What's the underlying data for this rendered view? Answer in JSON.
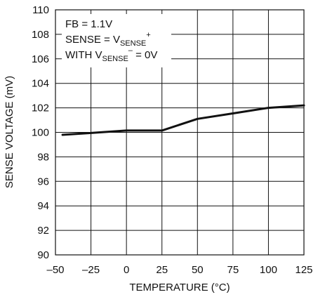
{
  "chart_data": {
    "type": "line",
    "xlabel": "TEMPERATURE (°C)",
    "ylabel": "SENSE VOLTAGE (mV)",
    "xlim": [
      -50,
      125
    ],
    "ylim": [
      90,
      110
    ],
    "x_ticks": [
      "–50",
      "–25",
      "0",
      "25",
      "50",
      "75",
      "100",
      "125"
    ],
    "y_ticks": [
      "90",
      "92",
      "94",
      "96",
      "98",
      "100",
      "102",
      "104",
      "106",
      "108",
      "110"
    ],
    "grid": true,
    "series": [
      {
        "x": [
          -45,
          -25,
          0,
          25,
          50,
          75,
          100,
          125
        ],
        "y": [
          99.8,
          99.95,
          100.15,
          100.15,
          101.1,
          101.55,
          102.0,
          102.2
        ]
      }
    ],
    "annotations": {
      "line1": "FB = 1.1V",
      "line2_prefix": "SENSE = V",
      "line2_sub": "SENSE",
      "line2_sup": "+",
      "line3_prefix": "WITH V",
      "line3_sub": "SENSE",
      "line3_sup": "–",
      "line3_suffix": " = 0V"
    }
  }
}
